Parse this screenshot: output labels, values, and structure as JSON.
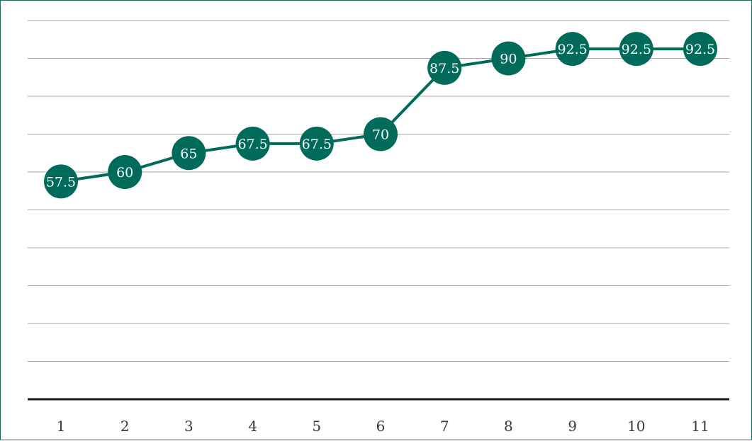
{
  "chart_data": {
    "type": "line",
    "title": "",
    "xlabel": "",
    "ylabel": "",
    "categories": [
      "1",
      "2",
      "3",
      "4",
      "5",
      "6",
      "7",
      "8",
      "9",
      "10",
      "11"
    ],
    "series": [
      {
        "values": [
          57.5,
          60,
          65,
          67.5,
          67.5,
          70,
          87.5,
          90,
          92.5,
          92.5,
          92.5
        ],
        "data_labels": [
          "57.5",
          "60",
          "65",
          "67.5",
          "67.5",
          "70",
          "87.5",
          "90",
          "92.5",
          "92.5",
          "92.5"
        ]
      }
    ],
    "ylim": [
      0,
      100
    ],
    "y_gridline_step": 10,
    "grid": true,
    "y_axis_labels_shown": false,
    "legend": "none",
    "colors": {
      "series": "#006b5a",
      "marker_text": "#ffffff",
      "gridline": "#a6a6a6",
      "axis_line": "#1a1a1a",
      "frame_border": "#1d6b5c"
    }
  }
}
